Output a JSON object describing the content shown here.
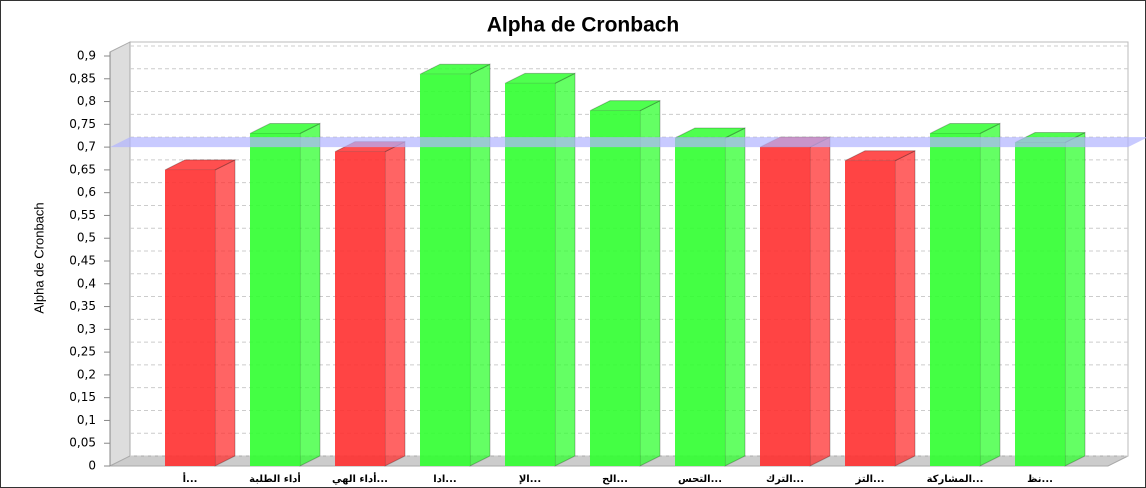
{
  "chart_data": {
    "type": "bar3d",
    "title": "Alpha de Cronbach",
    "y_label": "Alpha de Cronbach",
    "categories": [
      "أ...",
      "أداء الطلبة",
      "أداء الهي...",
      "ادا...",
      "الإ...",
      "الح...",
      "التحس...",
      "الترك...",
      "التز...",
      "المشاركة...",
      "نظ..."
    ],
    "values": [
      0.65,
      0.73,
      0.69,
      0.86,
      0.84,
      0.78,
      0.72,
      0.7,
      0.67,
      0.73,
      0.71
    ],
    "colors": [
      "#ff3030",
      "#30ff30",
      "#ff3030",
      "#30ff30",
      "#30ff30",
      "#30ff30",
      "#30ff30",
      "#ff3030",
      "#ff3030",
      "#30ff30",
      "#30ff30"
    ],
    "threshold": 0.7,
    "threshold_color": "#b0b4ff",
    "ylim": [
      0,
      0.9
    ],
    "yticks": [
      0,
      {
        "value": 0.05,
        "label": "0,05"
      },
      {
        "value": 0.1,
        "label": "0,1"
      },
      {
        "value": 0.15,
        "label": "0,15"
      },
      {
        "value": 0.2,
        "label": "0,2"
      },
      {
        "value": 0.25,
        "label": "0,25"
      },
      {
        "value": 0.3,
        "label": "0,3"
      },
      {
        "value": 0.35,
        "label": "0,35"
      },
      {
        "value": 0.4,
        "label": "0,4"
      },
      {
        "value": 0.45,
        "label": "0,45"
      },
      {
        "value": 0.5,
        "label": "0,5"
      },
      {
        "value": 0.55,
        "label": "0,55"
      },
      {
        "value": 0.6,
        "label": "0,6"
      },
      {
        "value": 0.65,
        "label": "0,65"
      },
      {
        "value": 0.7,
        "label": "0,7"
      },
      {
        "value": 0.75,
        "label": "0,75"
      },
      {
        "value": 0.8,
        "label": "0,8"
      },
      {
        "value": 0.85,
        "label": "0,85"
      },
      {
        "value": 0.9,
        "label": "0,9"
      }
    ],
    "grid": true
  }
}
